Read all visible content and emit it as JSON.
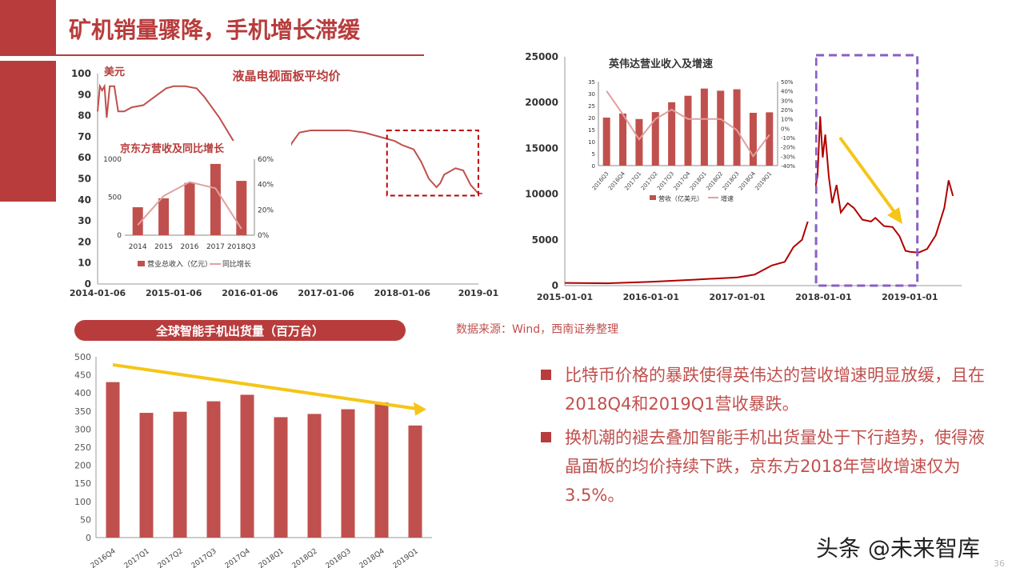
{
  "title": "矿机销量骤降，手机增长滞缓",
  "source_note": "数据来源：Wind，西南证券整理",
  "bullets": [
    "比特币价格的暴跌使得英伟达的营收增速明显放缓，且在2018Q4和2019Q1营收暴跌。",
    "换机潮的褪去叠加智能手机出货量处于下行趋势，使得液晶面板的均价持续下跌，京东方2018年营收增速仅为3.5%。"
  ],
  "logo_text": "头条 @未来智库",
  "page_number": "36",
  "colors": {
    "accent": "#b83c3c",
    "bar": "#c0504d",
    "arrow": "#f5c518",
    "box_purple": "#8a5fc4",
    "line_inset": "#e0a0a0"
  },
  "chart_data": [
    {
      "id": "lcd_panel_price",
      "type": "line",
      "title": "液晶电视面板平均价",
      "unit_label": "美元",
      "x_ticks": [
        "2014-01-06",
        "2015-01-06",
        "2016-01-06",
        "2017-01-06",
        "2018-01-06",
        "2019-01"
      ],
      "ylim": [
        0,
        100
      ],
      "y_ticks": [
        0,
        10,
        20,
        30,
        40,
        50,
        60,
        70,
        80,
        90,
        100
      ],
      "series": [
        {
          "values": [
            [
              2014.0,
              82
            ],
            [
              2014.03,
              94
            ],
            [
              2014.06,
              92
            ],
            [
              2014.09,
              94
            ],
            [
              2014.12,
              79
            ],
            [
              2014.16,
              94
            ],
            [
              2014.22,
              94
            ],
            [
              2014.27,
              82
            ],
            [
              2014.35,
              82
            ],
            [
              2014.45,
              84
            ],
            [
              2014.6,
              85
            ],
            [
              2014.75,
              89
            ],
            [
              2014.9,
              93
            ],
            [
              2015.0,
              94
            ],
            [
              2015.15,
              94
            ],
            [
              2015.3,
              93
            ],
            [
              2015.4,
              89
            ],
            [
              2015.5,
              84
            ],
            [
              2015.6,
              79
            ],
            [
              2015.7,
              73
            ],
            [
              2015.8,
              67
            ],
            [
              2015.9,
              61
            ],
            [
              2016.0,
              56
            ],
            [
              2016.1,
              53
            ],
            [
              2016.2,
              53
            ],
            [
              2016.35,
              55
            ],
            [
              2016.45,
              59
            ],
            [
              2016.55,
              67
            ],
            [
              2016.65,
              72
            ],
            [
              2016.8,
              73
            ],
            [
              2016.95,
              73
            ],
            [
              2017.1,
              73
            ],
            [
              2017.3,
              73
            ],
            [
              2017.5,
              72
            ],
            [
              2017.7,
              70
            ],
            [
              2017.9,
              68
            ],
            [
              2018.0,
              66
            ],
            [
              2018.15,
              64
            ],
            [
              2018.25,
              58
            ],
            [
              2018.35,
              50
            ],
            [
              2018.45,
              46
            ],
            [
              2018.5,
              48
            ],
            [
              2018.55,
              52
            ],
            [
              2018.7,
              55
            ],
            [
              2018.8,
              54
            ],
            [
              2018.9,
              47
            ],
            [
              2019.0,
              43
            ],
            [
              2019.05,
              43
            ]
          ]
        }
      ],
      "highlight_box": {
        "x_range": [
          2017.8,
          2019.0
        ],
        "y_range": [
          42,
          73
        ]
      }
    },
    {
      "id": "boe_revenue_inset",
      "type": "bar",
      "title": "京东方营收及同比增长",
      "categories": [
        "2014",
        "2015",
        "2016",
        "2017",
        "2018Q3"
      ],
      "ylim": [
        0,
        1000
      ],
      "y_ticks": [
        0,
        500,
        1000
      ],
      "y2lim": [
        0,
        60
      ],
      "y2_ticks": [
        "0%",
        "20%",
        "40%",
        "60%"
      ],
      "series": [
        {
          "name": "营业总收入（亿元）",
          "type": "bar",
          "values": [
            368,
            486,
            689,
            938,
            715
          ]
        },
        {
          "name": "同比增长",
          "type": "line",
          "axis": "right",
          "values": [
            8,
            31,
            42,
            37,
            5
          ]
        }
      ]
    },
    {
      "id": "global_smartphone_shipments",
      "type": "bar",
      "title": "全球智能手机出货量（百万台）",
      "categories": [
        "2016Q4",
        "2017Q1",
        "2017Q2",
        "2017Q3",
        "2017Q4",
        "2018Q1",
        "2018Q2",
        "2018Q3",
        "2018Q4",
        "2019Q1"
      ],
      "values": [
        430,
        345,
        348,
        377,
        395,
        333,
        342,
        355,
        374,
        310
      ],
      "ylim": [
        0,
        500
      ],
      "y_ticks": [
        0,
        50,
        100,
        150,
        200,
        250,
        300,
        350,
        400,
        450,
        500
      ]
    },
    {
      "id": "bitcoin_price",
      "type": "line",
      "x_ticks": [
        "2015-01-01",
        "2016-01-01",
        "2017-01-01",
        "2018-01-01",
        "2019-01-01"
      ],
      "ylim": [
        0,
        25000
      ],
      "y_ticks": [
        0,
        5000,
        10000,
        15000,
        20000,
        25000
      ],
      "series": [
        {
          "values": [
            [
              2015.0,
              300
            ],
            [
              2015.5,
              250
            ],
            [
              2016.0,
              420
            ],
            [
              2016.5,
              650
            ],
            [
              2017.0,
              900
            ],
            [
              2017.2,
              1200
            ],
            [
              2017.4,
              2200
            ],
            [
              2017.55,
              2600
            ],
            [
              2017.65,
              4200
            ],
            [
              2017.75,
              5000
            ],
            [
              2017.85,
              8000
            ],
            [
              2017.93,
              12000
            ],
            [
              2017.96,
              18500
            ],
            [
              2017.99,
              14000
            ],
            [
              2018.02,
              16500
            ],
            [
              2018.06,
              12000
            ],
            [
              2018.1,
              9000
            ],
            [
              2018.15,
              11000
            ],
            [
              2018.2,
              8000
            ],
            [
              2018.28,
              9000
            ],
            [
              2018.35,
              8500
            ],
            [
              2018.45,
              7200
            ],
            [
              2018.55,
              7000
            ],
            [
              2018.6,
              7400
            ],
            [
              2018.7,
              6500
            ],
            [
              2018.8,
              6400
            ],
            [
              2018.88,
              5400
            ],
            [
              2018.95,
              3800
            ],
            [
              2019.0,
              3700
            ],
            [
              2019.1,
              3600
            ],
            [
              2019.2,
              4000
            ],
            [
              2019.3,
              5500
            ],
            [
              2019.4,
              8500
            ],
            [
              2019.45,
              11500
            ],
            [
              2019.5,
              9800
            ]
          ]
        }
      ],
      "highlight_box": {
        "x_range": [
          2017.95,
          2019.05
        ]
      }
    },
    {
      "id": "nvidia_revenue_inset",
      "type": "bar",
      "title": "英伟达营业收入及增速",
      "categories": [
        "2016Q3",
        "2016Q4",
        "2017Q1",
        "2017Q2",
        "2017Q3",
        "2017Q4",
        "2018Q1",
        "2018Q2",
        "2018Q3",
        "2018Q4",
        "2019Q1"
      ],
      "ylim": [
        0,
        35
      ],
      "y_ticks": [
        0,
        5,
        10,
        15,
        20,
        25,
        30,
        35
      ],
      "y2lim": [
        -40,
        50
      ],
      "y2_ticks": [
        "-40%",
        "-30%",
        "-20%",
        "-10%",
        "0%",
        "10%",
        "20%",
        "30%",
        "40%",
        "50%"
      ],
      "series": [
        {
          "name": "营收（亿美元）",
          "type": "bar",
          "values": [
            20.0,
            21.7,
            19.4,
            22.3,
            26.4,
            29.1,
            32.1,
            31.2,
            31.8,
            22.0,
            22.2
          ]
        },
        {
          "name": "增速",
          "type": "line",
          "axis": "right",
          "values": [
            40,
            15,
            -12,
            10,
            20,
            10,
            10,
            10,
            -2,
            -30,
            -7
          ]
        }
      ]
    }
  ]
}
